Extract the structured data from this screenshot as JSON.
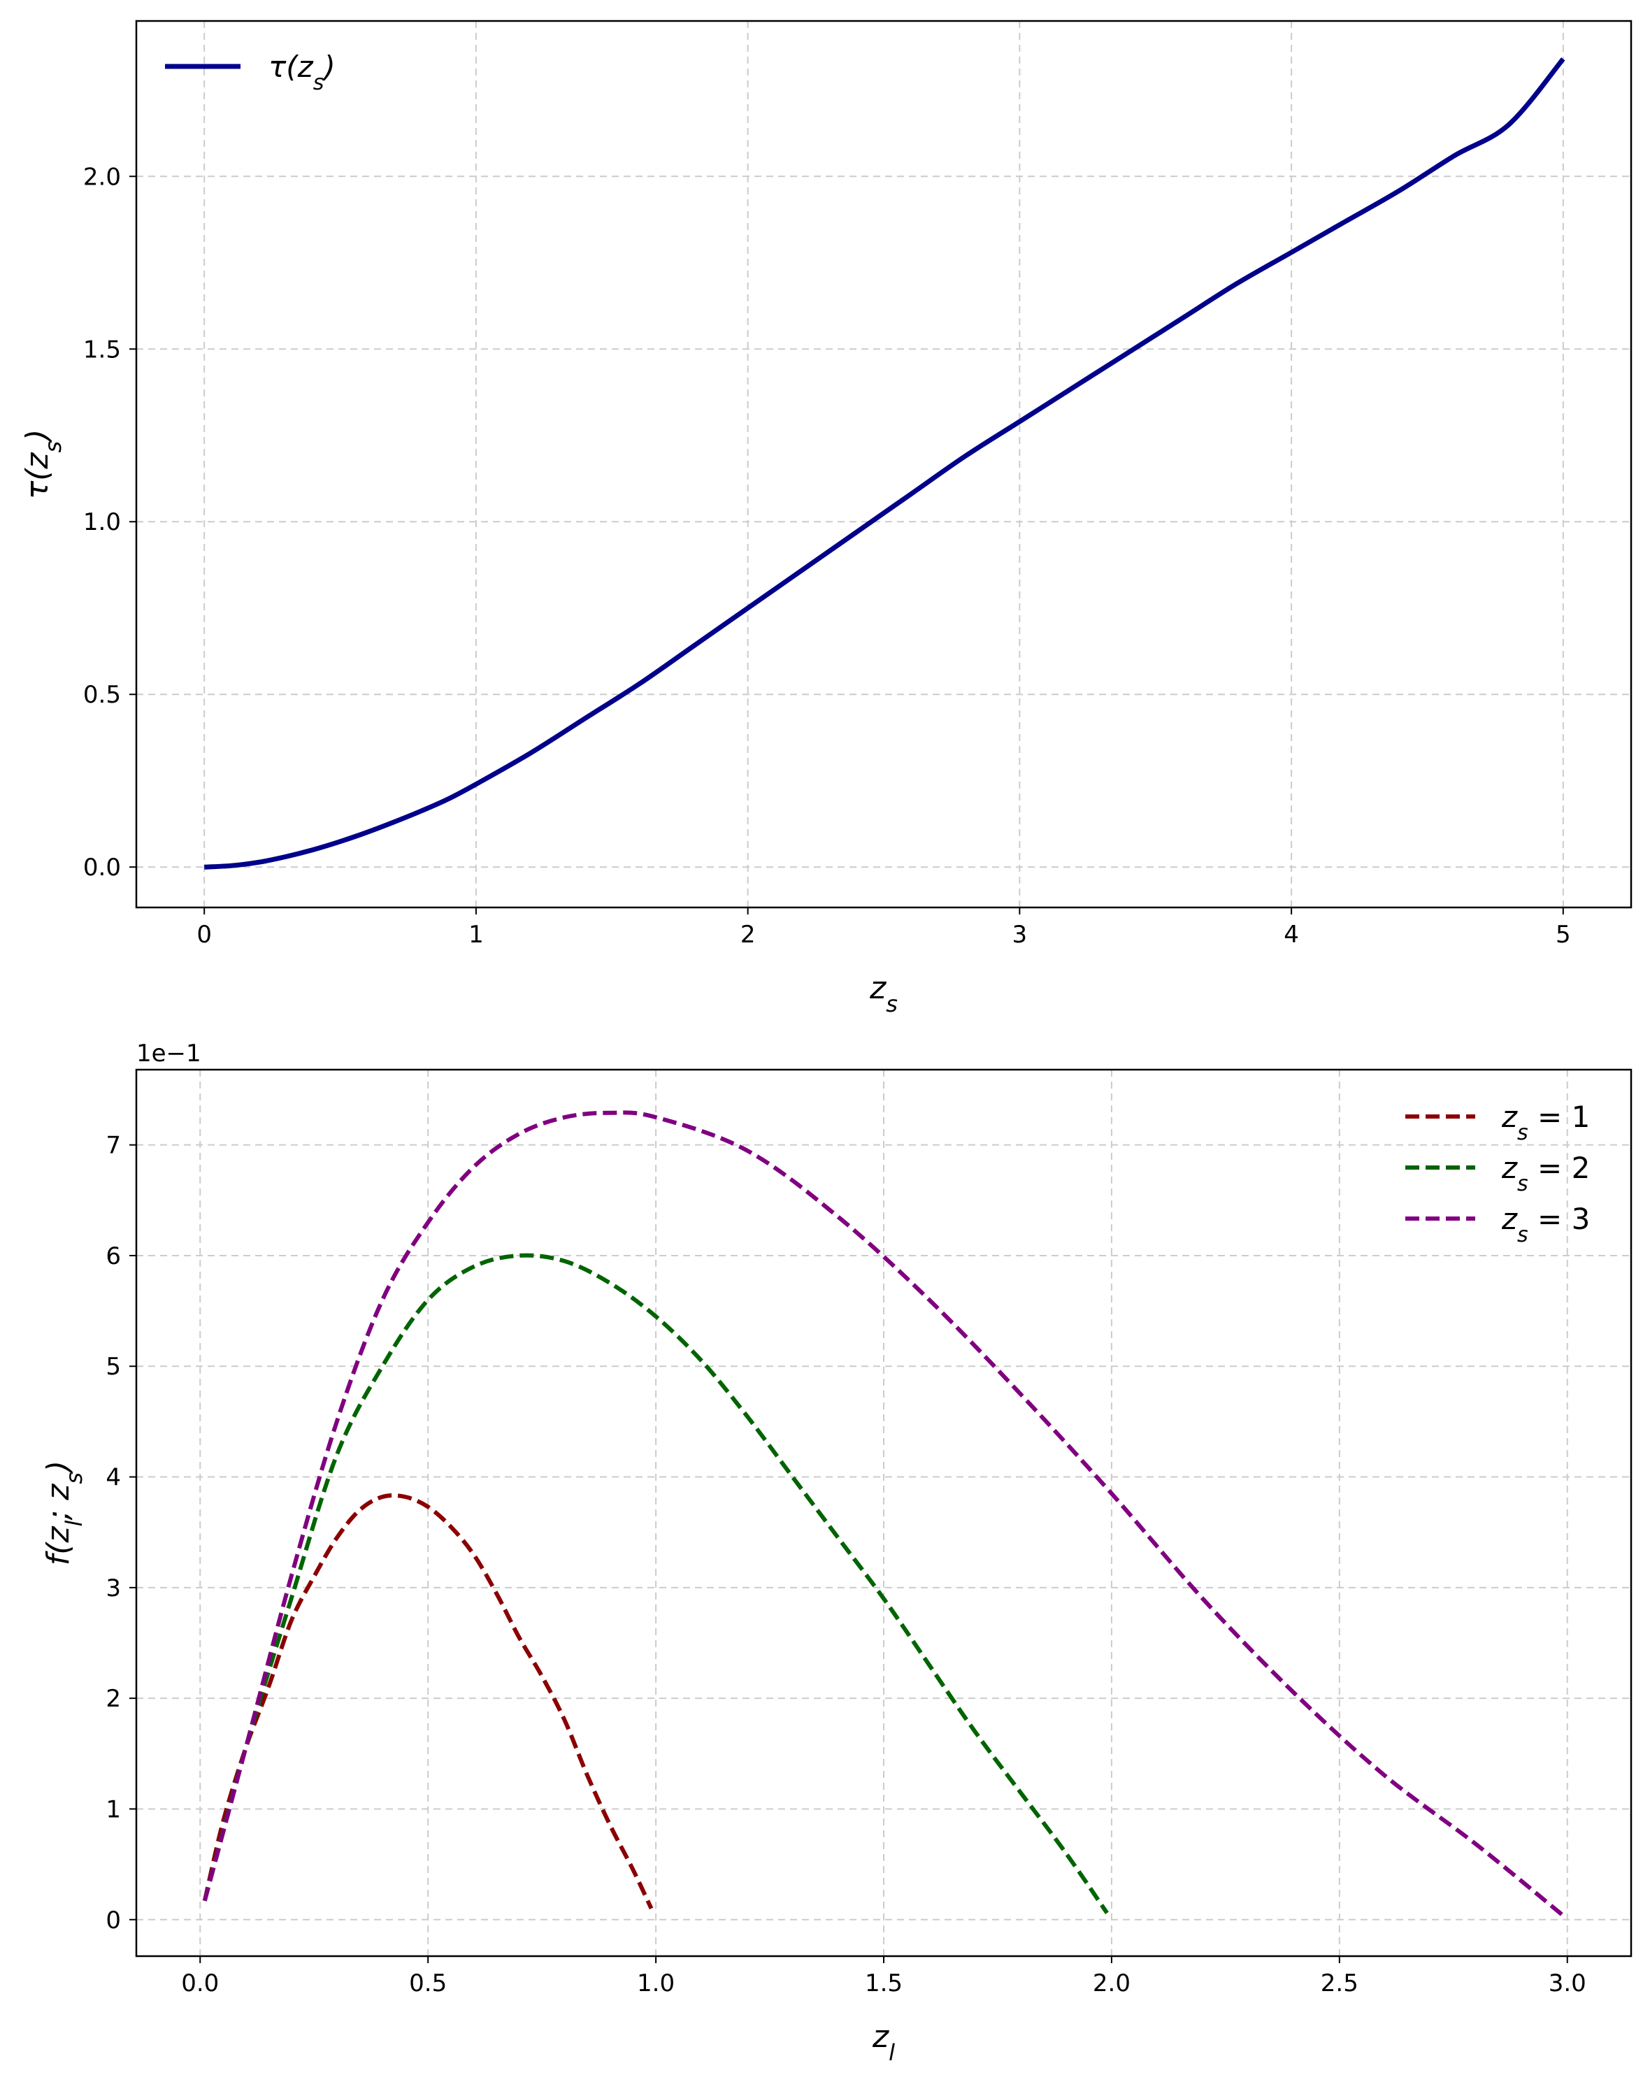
{
  "colors": {
    "tau": "#00008b",
    "zs1": "#8b0000",
    "zs2": "#006400",
    "zs3": "#800080",
    "grid": "#cccccc"
  },
  "chart_data": [
    {
      "type": "line",
      "title": "",
      "xlabel": "z_s",
      "ylabel": "τ(z_s)",
      "xlim": [
        -0.25,
        5.25
      ],
      "ylim": [
        -0.117,
        2.45
      ],
      "xticks": [
        0,
        1,
        2,
        3,
        4,
        5
      ],
      "xtick_labels": [
        "0",
        "1",
        "2",
        "3",
        "4",
        "5"
      ],
      "yticks": [
        0.0,
        0.5,
        1.0,
        1.5,
        2.0
      ],
      "ytick_labels": [
        "0.0",
        "0.5",
        "1.0",
        "1.5",
        "2.0"
      ],
      "grid": true,
      "legend_position": "upper-left",
      "series": [
        {
          "name": "τ(z_s)",
          "color": "#00008b",
          "style": "solid",
          "x": [
            0,
            0.1,
            0.2,
            0.3,
            0.4,
            0.5,
            0.6,
            0.7,
            0.8,
            0.9,
            1.0,
            1.2,
            1.4,
            1.6,
            1.8,
            2.0,
            2.2,
            2.4,
            2.6,
            2.8,
            3.0,
            3.2,
            3.4,
            3.6,
            3.8,
            4.0,
            4.2,
            4.4,
            4.6,
            4.8,
            5.0
          ],
          "y": [
            0,
            0.004,
            0.014,
            0.03,
            0.05,
            0.074,
            0.101,
            0.131,
            0.163,
            0.198,
            0.24,
            0.33,
            0.43,
            0.53,
            0.64,
            0.75,
            0.86,
            0.97,
            1.08,
            1.19,
            1.29,
            1.39,
            1.49,
            1.59,
            1.69,
            1.78,
            1.87,
            1.96,
            2.06,
            2.15,
            2.34
          ]
        }
      ]
    },
    {
      "type": "line",
      "title": "",
      "xlabel": "z_l",
      "ylabel": "f(z_l; z_s)",
      "offset_label": "1e−1",
      "xlim": [
        -0.14,
        3.14
      ],
      "ylim": [
        -0.33,
        7.68
      ],
      "xticks": [
        0.0,
        0.5,
        1.0,
        1.5,
        2.0,
        2.5,
        3.0
      ],
      "xtick_labels": [
        "0.0",
        "0.5",
        "1.0",
        "1.5",
        "2.0",
        "2.5",
        "3.0"
      ],
      "yticks": [
        0,
        1,
        2,
        3,
        4,
        5,
        6,
        7
      ],
      "ytick_labels": [
        "0",
        "1",
        "2",
        "3",
        "4",
        "5",
        "6",
        "7"
      ],
      "grid": true,
      "legend_position": "upper-right",
      "series": [
        {
          "name": "z_s = 1",
          "color": "#8b0000",
          "style": "dashed",
          "x": [
            0.01,
            0.05,
            0.1,
            0.15,
            0.2,
            0.25,
            0.3,
            0.35,
            0.4,
            0.45,
            0.5,
            0.55,
            0.6,
            0.65,
            0.7,
            0.75,
            0.8,
            0.85,
            0.9,
            0.95,
            0.99
          ],
          "y": [
            0.17,
            0.88,
            1.55,
            2.1,
            2.7,
            3.1,
            3.45,
            3.7,
            3.82,
            3.82,
            3.73,
            3.55,
            3.3,
            2.95,
            2.55,
            2.2,
            1.8,
            1.3,
            0.85,
            0.45,
            0.1
          ]
        },
        {
          "name": "z_s = 2",
          "color": "#006400",
          "style": "dashed",
          "x": [
            0.01,
            0.1,
            0.2,
            0.3,
            0.4,
            0.5,
            0.6,
            0.7,
            0.8,
            0.9,
            1.0,
            1.1,
            1.2,
            1.3,
            1.4,
            1.5,
            1.6,
            1.7,
            1.8,
            1.9,
            1.99
          ],
          "y": [
            0.17,
            1.55,
            2.9,
            4.2,
            5.0,
            5.6,
            5.9,
            6.0,
            5.95,
            5.75,
            5.45,
            5.05,
            4.55,
            4.0,
            3.45,
            2.9,
            2.3,
            1.7,
            1.15,
            0.6,
            0.06
          ]
        },
        {
          "name": "z_s = 3",
          "color": "#800080",
          "style": "dashed",
          "x": [
            0.01,
            0.1,
            0.2,
            0.3,
            0.4,
            0.5,
            0.6,
            0.7,
            0.8,
            0.9,
            1.0,
            1.2,
            1.4,
            1.6,
            1.8,
            2.0,
            2.2,
            2.4,
            2.6,
            2.8,
            2.99
          ],
          "y": [
            0.17,
            1.55,
            3.1,
            4.5,
            5.6,
            6.3,
            6.8,
            7.1,
            7.25,
            7.29,
            7.25,
            6.95,
            6.35,
            5.6,
            4.75,
            3.85,
            2.9,
            2.05,
            1.3,
            0.68,
            0.04
          ]
        }
      ]
    }
  ]
}
